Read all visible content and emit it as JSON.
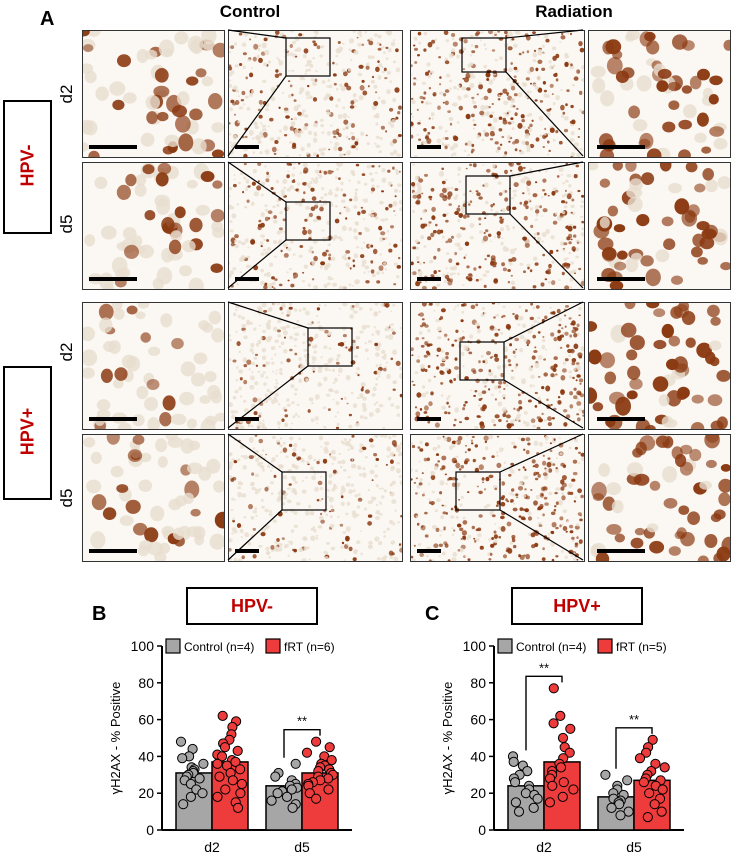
{
  "figure": {
    "panel_labels": {
      "a": "A",
      "b": "B",
      "c": "C"
    },
    "column_headers": [
      "Control",
      "Radiation"
    ],
    "groups": [
      "HPV-",
      "HPV+"
    ],
    "row_labels": [
      "d2",
      "d5",
      "d2",
      "d5"
    ]
  },
  "colors": {
    "accent_red": "#c00000",
    "control_bar": "#a6a6a6",
    "frt_bar": "#ee3b3b",
    "stain_brown": "#8b3a12",
    "background_cells": "#e9ddd0"
  },
  "chart_data": [
    {
      "type": "bar",
      "title": "HPV-",
      "ylabel": "γH2AX - % Positive",
      "ylim": [
        0,
        100
      ],
      "yticks": [
        "0",
        "20",
        "40",
        "60",
        "80",
        "100"
      ],
      "categories": [
        "d2",
        "d5"
      ],
      "legend_position": "top",
      "series": [
        {
          "name": "Control (n=4)",
          "values": [
            31,
            24
          ]
        },
        {
          "name": "fRT (n=6)",
          "values": [
            37,
            31
          ]
        }
      ],
      "annotations": [
        {
          "text": "**",
          "between": "d5"
        }
      ],
      "points": {
        "control_d2": [
          48,
          44,
          40,
          39,
          36,
          34,
          33,
          32,
          31,
          30,
          29,
          28,
          27,
          25,
          22,
          20,
          18,
          14
        ],
        "frt_d2": [
          62,
          59,
          56,
          52,
          49,
          47,
          45,
          43,
          41,
          40,
          38,
          37,
          36,
          35,
          33,
          31,
          29,
          27,
          25,
          22,
          20,
          18,
          15,
          12
        ],
        "control_d5": [
          36,
          31,
          29,
          27,
          25,
          24,
          23,
          22,
          21,
          20,
          18,
          16,
          14,
          12
        ],
        "frt_d5": [
          48,
          45,
          42,
          40,
          38,
          36,
          35,
          34,
          33,
          32,
          31,
          30,
          29,
          28,
          27,
          26,
          25,
          24,
          22,
          20,
          17
        ]
      }
    },
    {
      "type": "bar",
      "title": "HPV+",
      "ylabel": "γH2AX - % Positive",
      "ylim": [
        0,
        100
      ],
      "yticks": [
        "0",
        "20",
        "40",
        "60",
        "80",
        "100"
      ],
      "categories": [
        "d2",
        "d5"
      ],
      "legend_position": "top",
      "series": [
        {
          "name": "Control (n=4)",
          "values": [
            24,
            18
          ]
        },
        {
          "name": "fRT (n=5)",
          "values": [
            37,
            27
          ]
        }
      ],
      "annotations": [
        {
          "text": "**",
          "between": "d2"
        },
        {
          "text": "**",
          "between": "d5"
        }
      ],
      "points": {
        "control_d2": [
          40,
          37,
          35,
          32,
          30,
          28,
          26,
          24,
          22,
          20,
          19,
          17,
          15,
          12,
          10
        ],
        "frt_d2": [
          77,
          62,
          58,
          55,
          50,
          45,
          42,
          39,
          36,
          34,
          32,
          30,
          28,
          26,
          24,
          22,
          18,
          15
        ],
        "control_d5": [
          30,
          27,
          24,
          22,
          20,
          19,
          17,
          16,
          15,
          14,
          12,
          10,
          8
        ],
        "frt_d5": [
          49,
          45,
          42,
          39,
          36,
          34,
          32,
          30,
          28,
          27,
          26,
          24,
          22,
          20,
          17,
          14,
          10,
          7
        ]
      }
    }
  ]
}
